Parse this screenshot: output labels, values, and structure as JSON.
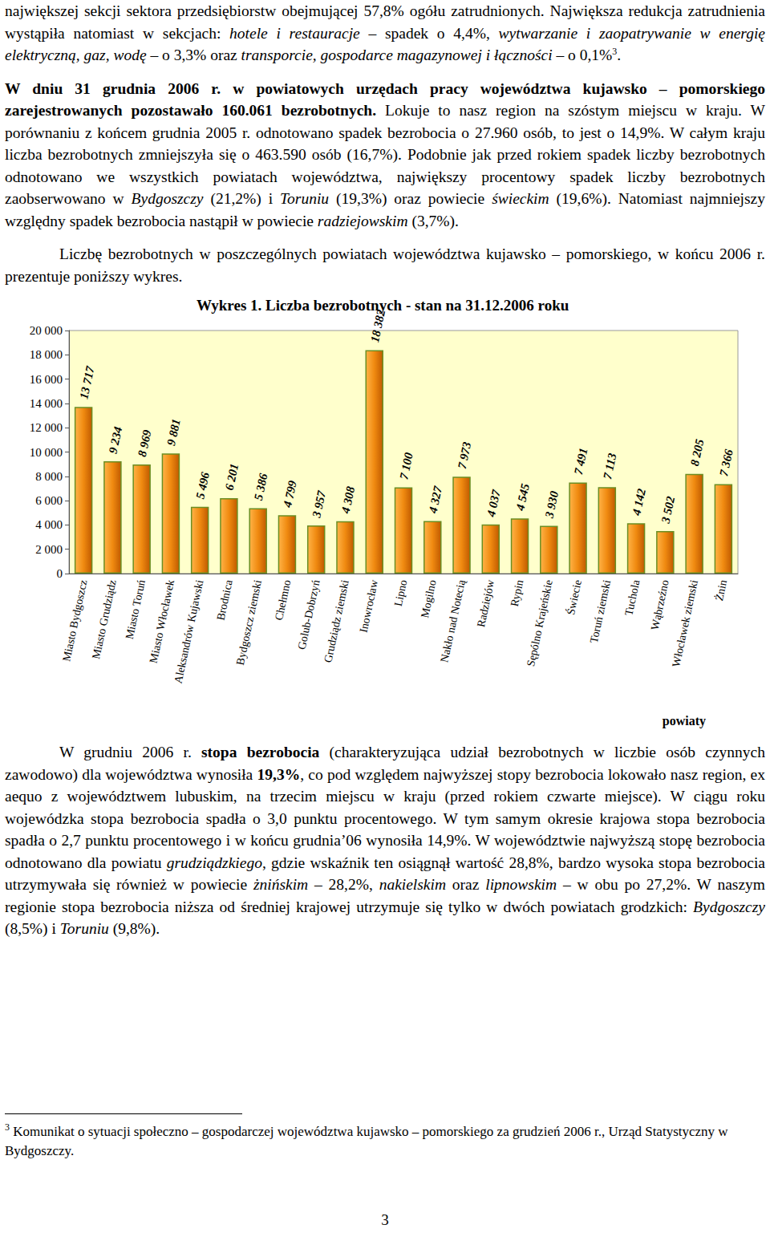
{
  "paragraphs": [
    [
      {
        "text": "największej sekcji sektora przedsiębiorstw obejmującej 57,8% ogółu zatrudnionych. Największa redukcja zatrudnienia wystąpiła natomiast w sekcjach: "
      },
      {
        "text": "hotele i restauracje",
        "style": "italic"
      },
      {
        "text": " – spadek o 4,4%, "
      },
      {
        "text": "wytwarzanie i zaopatrywanie w energię elektryczną, gaz, wodę",
        "style": "italic"
      },
      {
        "text": " – o 3,3% oraz "
      },
      {
        "text": "transporcie, gospodarce magazynowej i łączności",
        "style": "italic"
      },
      {
        "text": " – o 0,1%"
      },
      {
        "text": "3",
        "style": "sup"
      },
      {
        "text": "."
      }
    ],
    [
      {
        "text": "W dniu 31 grudnia 2006 r. w powiatowych urzędach pracy województwa kujawsko – pomorskiego zarejestrowanych pozostawało 160.061 bezrobotnych.",
        "style": "bold"
      },
      {
        "text": " Lokuje to nasz region na szóstym miejscu w kraju. W porównaniu z końcem grudnia 2005 r. odnotowano spadek bezrobocia o 27.960 osób, to jest o 14,9%. W całym kraju liczba bezrobotnych zmniejszyła się o 463.590 osób (16,7%). Podobnie jak przed rokiem spadek liczby bezrobotnych odnotowano we wszystkich powiatach województwa, największy procentowy spadek liczby bezrobotnych zaobserwowano w "
      },
      {
        "text": "Bydgoszczy",
        "style": "italic"
      },
      {
        "text": " (21,2%) i "
      },
      {
        "text": "Toruniu",
        "style": "italic"
      },
      {
        "text": " (19,3%) oraz powiecie "
      },
      {
        "text": "świeckim",
        "style": "italic"
      },
      {
        "text": " (19,6%). Natomiast najmniejszy względny spadek bezrobocia nastąpił w powiecie "
      },
      {
        "text": "radziejowskim",
        "style": "italic"
      },
      {
        "text": " (3,7%)."
      }
    ],
    [
      {
        "text": "Liczbę bezrobotnych w poszczególnych powiatach województwa kujawsko – pomorskiego, w końcu 2006 r. prezentuje poniższy wykres."
      }
    ],
    [
      {
        "text": "W grudniu 2006 r. "
      },
      {
        "text": "stopa bezrobocia",
        "style": "bold"
      },
      {
        "text": " (charakteryzująca udział bezrobotnych w liczbie osób czynnych zawodowo) dla województwa wynosiła "
      },
      {
        "text": "19,3%",
        "style": "bold"
      },
      {
        "text": ", co pod względem najwyższej stopy bezrobocia lokowało nasz region, ex aequo z województwem lubuskim, na trzecim miejscu w kraju (przed rokiem czwarte miejsce). W ciągu roku wojewódzka stopa bezrobocia spadła o 3,0 punktu procentowego. W tym samym okresie krajowa stopa bezrobocia spadła o 2,7 punktu procentowego i w końcu grudnia’06 wynosiła 14,9%. W województwie najwyższą stopę bezrobocia odnotowano dla powiatu "
      },
      {
        "text": "grudziądzkiego",
        "style": "italic"
      },
      {
        "text": ", gdzie wskaźnik ten osiągnął wartość 28,8%, bardzo wysoka stopa bezrobocia utrzymywała się również w powiecie "
      },
      {
        "text": "żnińskim",
        "style": "italic"
      },
      {
        "text": " – 28,2%, "
      },
      {
        "text": "nakielskim",
        "style": "italic"
      },
      {
        "text": " oraz "
      },
      {
        "text": "lipnowskim",
        "style": "italic"
      },
      {
        "text": " – w obu po 27,2%. W naszym regionie stopa bezrobocia niższa od średniej krajowej utrzymuje się tylko w dwóch powiatach grodzkich: "
      },
      {
        "text": "Bydgoszczy",
        "style": "italic"
      },
      {
        "text": " (8,5%) i "
      },
      {
        "text": "Toruniu",
        "style": "italic"
      },
      {
        "text": " (9,8%)."
      }
    ]
  ],
  "chart_data": {
    "type": "bar",
    "title": "Wykres 1. Liczba bezrobotnych - stan na 31.12.2006 roku",
    "x_label": "powiaty",
    "categories": [
      "Miasto Bydgoszcz",
      "Miasto Grudziądz",
      "Miasto Toruń",
      "Miasto Włocławek",
      "Aleksandrów Kujawski",
      "Brodnica",
      "Bydgoszcz ziemski",
      "Chełmno",
      "Golub-Dobrzyń",
      "Grudziądz ziemski",
      "Inowrocław",
      "Lipno",
      "Mogilno",
      "Nakło nad Notecią",
      "Radziejów",
      "Rypin",
      "Sępólno Krajeńskie",
      "Świecie",
      "Toruń ziemski",
      "Tuchola",
      "Wąbrzeźno",
      "Włocławek ziemski",
      "Żnin"
    ],
    "values": [
      13717,
      9234,
      8969,
      9881,
      5496,
      6201,
      5386,
      4799,
      3957,
      4308,
      18382,
      7100,
      4327,
      7973,
      4037,
      4545,
      3930,
      7491,
      7113,
      4142,
      3502,
      8205,
      7366
    ],
    "value_labels": [
      "13 717",
      "9 234",
      "8 969",
      "9 881",
      "5 496",
      "6 201",
      "5 386",
      "4 799",
      "3 957",
      "4 308",
      "18 382",
      "7 100",
      "4 327",
      "7 973",
      "4 037",
      "4 545",
      "3 930",
      "7 491",
      "7 113",
      "4 142",
      "3 502",
      "8 205",
      "7 366"
    ],
    "data_labels": true,
    "color": "#f08a10",
    "ylim": [
      0,
      20000
    ],
    "yticks": [
      0,
      {
        "value": 2000,
        "label": "2 000"
      },
      {
        "value": 4000,
        "label": "4 000"
      },
      {
        "value": 6000,
        "label": "6 000"
      },
      {
        "value": 8000,
        "label": "8 000"
      },
      {
        "value": 10000,
        "label": "10 000"
      },
      {
        "value": 12000,
        "label": "12 000"
      },
      {
        "value": 14000,
        "label": "14 000"
      },
      {
        "value": 16000,
        "label": "16 000"
      },
      {
        "value": 18000,
        "label": "18 000"
      },
      {
        "value": 20000,
        "label": "20 000"
      }
    ],
    "grid": false
  },
  "footnote": [
    {
      "text": "3",
      "style": "sup"
    },
    {
      "text": " Komunikat o sytuacji społeczno – gospodarczej województwa kujawsko – pomorskiego za grudzień 2006 r., Urząd Statystyczny w Bydgoszczy."
    }
  ],
  "page_number": "3"
}
